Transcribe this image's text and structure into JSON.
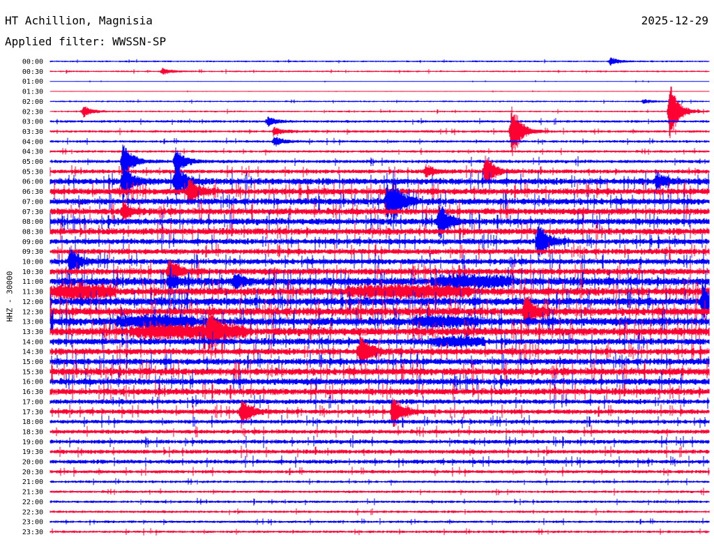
{
  "header": {
    "station": "HT Achillion, Magnisia",
    "date": "2025-12-29",
    "filter": "Applied filter: WWSSN-SP"
  },
  "colors": {
    "trace_a": "#0000ff",
    "trace_b": "#ff0033"
  },
  "chart_data": {
    "type": "line",
    "chart_kind": "helicorder",
    "ylabel": "HHZ - 30000",
    "row_labels": [
      "00:00",
      "00:30",
      "01:00",
      "01:30",
      "02:00",
      "02:30",
      "03:00",
      "03:30",
      "04:00",
      "04:30",
      "05:00",
      "05:30",
      "06:00",
      "06:30",
      "07:00",
      "07:30",
      "08:00",
      "08:30",
      "09:00",
      "09:30",
      "10:00",
      "10:30",
      "11:00",
      "11:30",
      "12:00",
      "12:30",
      "13:00",
      "13:30",
      "14:00",
      "14:30",
      "15:00",
      "15:30",
      "16:00",
      "16:30",
      "17:00",
      "17:30",
      "18:00",
      "18:30",
      "19:00",
      "19:30",
      "20:00",
      "20:30",
      "21:00",
      "21:30",
      "22:00",
      "22:30",
      "23:00",
      "23:30"
    ],
    "row_colors": [
      "blue",
      "red"
    ],
    "row_noise": [
      1,
      1,
      0.5,
      0.5,
      1,
      1,
      1.5,
      1.5,
      1.5,
      1.5,
      2,
      2.5,
      4,
      4,
      4,
      4,
      4,
      4,
      3.5,
      3.5,
      3.5,
      4,
      5,
      5,
      5,
      5,
      5,
      5,
      4,
      4,
      4,
      4.5,
      4,
      4,
      3,
      3,
      2.5,
      2.5,
      2.5,
      2.5,
      2.5,
      2,
      1.5,
      1.5,
      1.5,
      1.5,
      1.5,
      1.5
    ],
    "events": [
      {
        "row": 0,
        "t": 0.85,
        "amp": 6
      },
      {
        "row": 1,
        "t": 0.17,
        "amp": 5
      },
      {
        "row": 4,
        "t": 0.9,
        "amp": 3
      },
      {
        "row": 5,
        "t": 0.05,
        "amp": 9
      },
      {
        "row": 5,
        "t": 0.94,
        "amp": 45
      },
      {
        "row": 6,
        "t": 0.33,
        "amp": 7
      },
      {
        "row": 7,
        "t": 0.7,
        "amp": 45
      },
      {
        "row": 7,
        "t": 0.34,
        "amp": 6
      },
      {
        "row": 8,
        "t": 0.34,
        "amp": 8
      },
      {
        "row": 10,
        "t": 0.11,
        "amp": 30
      },
      {
        "row": 10,
        "t": 0.19,
        "amp": 22
      },
      {
        "row": 11,
        "t": 0.66,
        "amp": 25
      },
      {
        "row": 11,
        "t": 0.57,
        "amp": 10
      },
      {
        "row": 12,
        "t": 0.11,
        "amp": 28
      },
      {
        "row": 12,
        "t": 0.19,
        "amp": 30
      },
      {
        "row": 12,
        "t": 0.92,
        "amp": 12
      },
      {
        "row": 13,
        "t": 0.21,
        "amp": 22
      },
      {
        "row": 14,
        "t": 0.52,
        "amp": 24
      },
      {
        "row": 14,
        "t": 0.51,
        "amp": 24
      },
      {
        "row": 15,
        "t": 0.11,
        "amp": 12
      },
      {
        "row": 16,
        "t": 0.59,
        "amp": 28
      },
      {
        "row": 18,
        "t": 0.74,
        "amp": 32
      },
      {
        "row": 20,
        "t": 0.03,
        "amp": 20
      },
      {
        "row": 21,
        "t": 0.18,
        "amp": 20
      },
      {
        "row": 22,
        "t": 0.18,
        "amp": 12
      },
      {
        "row": 22,
        "t": 0.28,
        "amp": 12
      },
      {
        "row": 24,
        "t": 0.99,
        "amp": 28
      },
      {
        "row": 25,
        "t": 0.72,
        "amp": 30
      },
      {
        "row": 27,
        "t": 0.24,
        "amp": 28
      },
      {
        "row": 29,
        "t": 0.47,
        "amp": 28
      },
      {
        "row": 35,
        "t": 0.29,
        "amp": 22
      },
      {
        "row": 35,
        "t": 0.52,
        "amp": 24
      }
    ],
    "bursts": [
      {
        "row": 23,
        "t0": 0.0,
        "t1": 0.1,
        "amp": 7
      },
      {
        "row": 23,
        "t0": 0.45,
        "t1": 0.64,
        "amp": 6
      },
      {
        "row": 22,
        "t0": 0.58,
        "t1": 0.7,
        "amp": 6
      },
      {
        "row": 27,
        "t0": 0.12,
        "t1": 0.3,
        "amp": 7
      },
      {
        "row": 26,
        "t0": 0.1,
        "t1": 0.22,
        "amp": 6
      },
      {
        "row": 26,
        "t0": 0.55,
        "t1": 0.65,
        "amp": 5
      },
      {
        "row": 28,
        "t0": 0.58,
        "t1": 0.66,
        "amp": 5
      }
    ]
  }
}
